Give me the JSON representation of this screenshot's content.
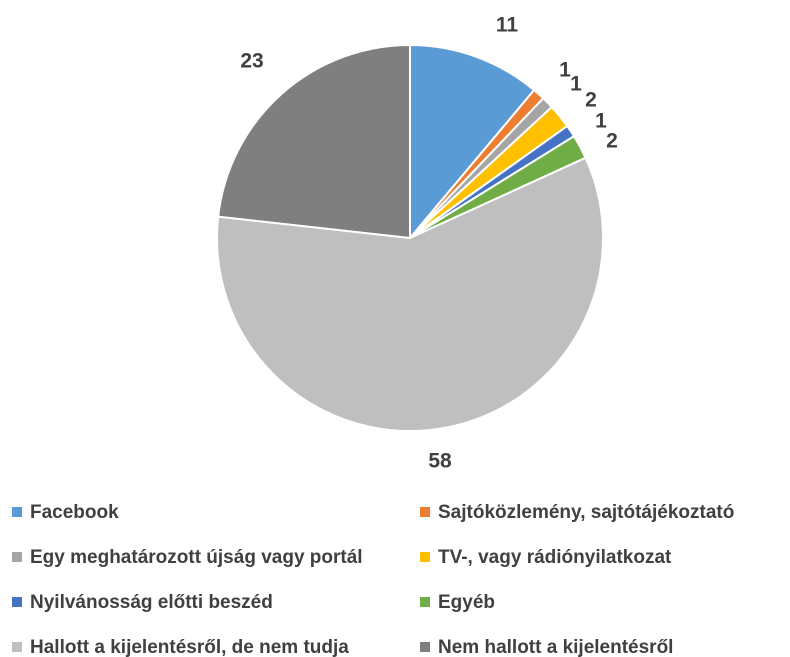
{
  "chart_data": {
    "type": "pie",
    "categories": [
      "Facebook",
      "Sajtóközlemény, sajtótájékoztató",
      "Egy meghatározott újság vagy portál",
      "TV-, vagy rádiónyilatkozat",
      "Nyilvánosság előtti beszéd",
      "Egyéb",
      "Hallott a kijelentésről, de nem tudja",
      "Nem hallott a kijelentésről"
    ],
    "values": [
      11,
      1,
      1,
      2,
      1,
      2,
      58,
      23
    ],
    "colors": [
      "#5b9bd5",
      "#ed7d31",
      "#a5a5a5",
      "#ffc000",
      "#4472c4",
      "#70ad47",
      "#bfbfbf",
      "#7f7f7f"
    ],
    "legend": "bottom"
  }
}
